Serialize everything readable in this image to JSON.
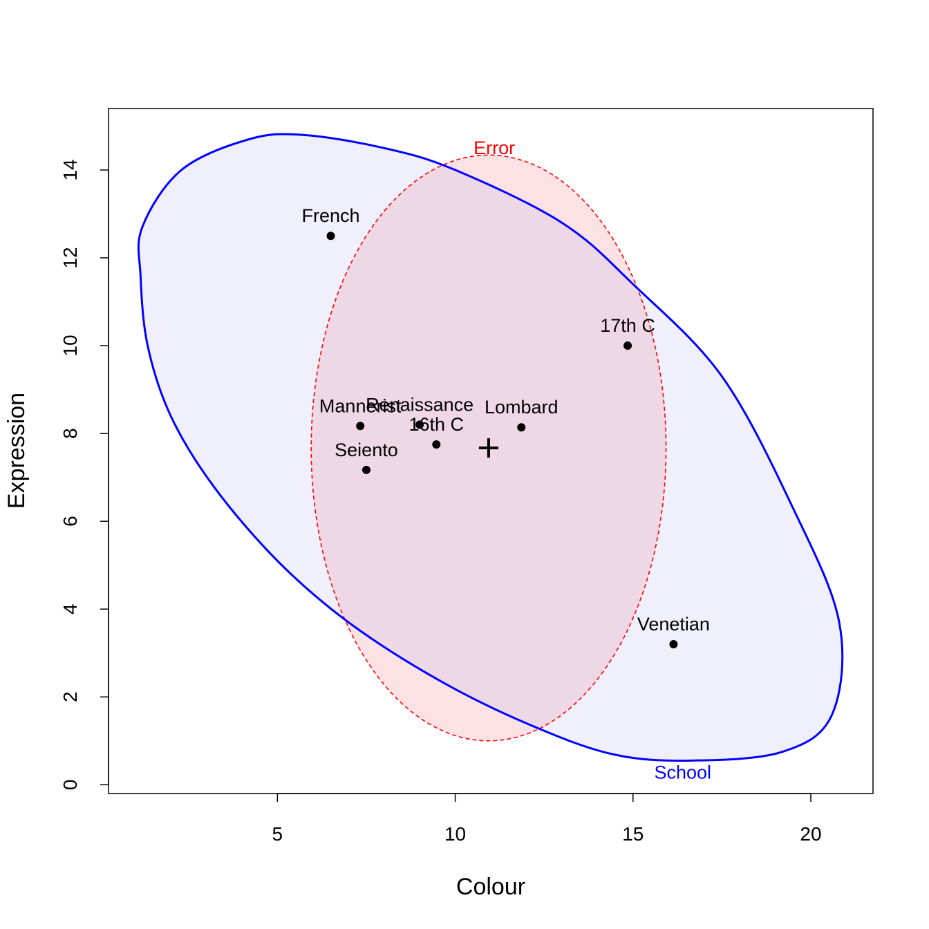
{
  "chart_data": {
    "type": "scatter",
    "title": "",
    "xlabel": "Colour",
    "ylabel": "Expression",
    "xlim": [
      0.25,
      21.75
    ],
    "ylim": [
      -0.2,
      15.4
    ],
    "xticks": [
      "5",
      "10",
      "15",
      "20"
    ],
    "yticks": [
      "0",
      "2",
      "4",
      "6",
      "8",
      "10",
      "12",
      "14"
    ],
    "grid": false,
    "points": [
      {
        "name": "French",
        "x": 6.5,
        "y": 12.5
      },
      {
        "name": "17th C",
        "x": 14.85,
        "y": 10.0
      },
      {
        "name": "Mannerist",
        "x": 7.33,
        "y": 8.17
      },
      {
        "name": "Renaissance",
        "x": 9.0,
        "y": 8.2
      },
      {
        "name": "16th C",
        "x": 9.47,
        "y": 7.75
      },
      {
        "name": "Lombard",
        "x": 11.86,
        "y": 8.14
      },
      {
        "name": "Seiento",
        "x": 7.5,
        "y": 7.17
      },
      {
        "name": "Venetian",
        "x": 16.14,
        "y": 3.2
      }
    ],
    "centroid": {
      "x": 10.94,
      "y": 7.67
    },
    "ellipses": [
      {
        "name": "School",
        "color": "#0000FF",
        "fill": "#F0F0FC",
        "line": "solid",
        "center": {
          "x": 10.94,
          "y": 7.67
        },
        "boundary": [
          [
            1.15,
            11.6
          ],
          [
            1.2,
            12.7
          ],
          [
            2.3,
            14.0
          ],
          [
            4.2,
            14.7
          ],
          [
            5.7,
            14.8
          ],
          [
            8.0,
            14.5
          ],
          [
            10.0,
            14.0
          ],
          [
            13.0,
            12.8
          ],
          [
            15.0,
            11.4
          ],
          [
            17.5,
            9.3
          ],
          [
            19.5,
            6.3
          ],
          [
            20.8,
            3.7
          ],
          [
            20.6,
            1.6
          ],
          [
            19.2,
            0.75
          ],
          [
            16.6,
            0.55
          ],
          [
            14.4,
            0.7
          ],
          [
            12.0,
            1.4
          ],
          [
            9.5,
            2.4
          ],
          [
            7.0,
            3.7
          ],
          [
            5.0,
            5.1
          ],
          [
            3.2,
            6.8
          ],
          [
            2.0,
            8.4
          ],
          [
            1.35,
            10.0
          ]
        ]
      },
      {
        "name": "Error",
        "color": "#FF0000",
        "fill": "#FCDCE0",
        "line": "dashed",
        "center": {
          "x": 10.94,
          "y": 7.67
        },
        "rx": 4.99,
        "ry": 6.67
      }
    ]
  }
}
